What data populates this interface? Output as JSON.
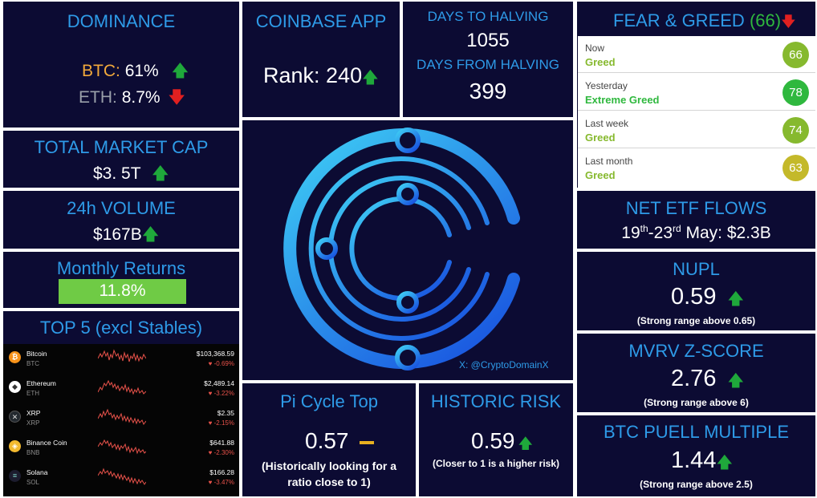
{
  "dominance": {
    "title": "DOMINANCE",
    "btc_label": "BTC:",
    "btc_value": "61%",
    "btc_arrow": "up-arrow",
    "eth_label": "ETH:",
    "eth_value": "8.7%",
    "eth_arrow": "down-arrow"
  },
  "coinbase": {
    "title": "COINBASE APP",
    "rank_label": "Rank: 240"
  },
  "halving": {
    "days_to_label": "DAYS TO HALVING",
    "days_to_value": "1055",
    "days_from_label": "DAYS FROM HALVING",
    "days_from_value": "399"
  },
  "fear_greed": {
    "title": "FEAR & GREED",
    "score": "(66)",
    "rows": [
      {
        "label": "Now",
        "sentiment": "Greed",
        "value": "66",
        "color": "#86b92e"
      },
      {
        "label": "Yesterday",
        "sentiment": "Extreme Greed",
        "value": "78",
        "color": "#2fb83e"
      },
      {
        "label": "Last week",
        "sentiment": "Greed",
        "value": "74",
        "color": "#86b92e"
      },
      {
        "label": "Last month",
        "sentiment": "Greed",
        "value": "63",
        "color": "#c4b92a"
      }
    ]
  },
  "market_cap": {
    "title": "TOTAL MARKET CAP",
    "value": "$3. 5T"
  },
  "volume": {
    "title": "24h VOLUME",
    "value": "$167B"
  },
  "monthly": {
    "title": "Monthly Returns",
    "value": "11.8%",
    "bar_color": "#6fcb45"
  },
  "top5": {
    "title": "TOP 5 (excl Stables)",
    "coins": [
      {
        "name": "Bitcoin",
        "symbol": "BTC",
        "price": "$103,368.59",
        "change": "-0.69%",
        "icon_color": "#f7931a",
        "icon_glyph": "₿"
      },
      {
        "name": "Ethereum",
        "symbol": "ETH",
        "price": "$2,489.14",
        "change": "-3.22%",
        "icon_color": "#ffffff",
        "icon_glyph": "◆"
      },
      {
        "name": "XRP",
        "symbol": "XRP",
        "price": "$2.35",
        "change": "-2.15%",
        "icon_color": "#23292f",
        "icon_glyph": "✕"
      },
      {
        "name": "Binance Coin",
        "symbol": "BNB",
        "price": "$641.88",
        "change": "-2.30%",
        "icon_color": "#f3ba2f",
        "icon_glyph": "◈"
      },
      {
        "name": "Solana",
        "symbol": "SOL",
        "price": "$166.28",
        "change": "-3.47%",
        "icon_color": "#1c1c2e",
        "icon_glyph": "≡"
      }
    ]
  },
  "logo": {
    "credit": "X: @CryptoDomainX"
  },
  "etf": {
    "title": "NET ETF FLOWS",
    "d1": "19",
    "s1": "th",
    "sep": "-23",
    "s2": "rd",
    "rest": " May: $2.3B"
  },
  "nupl": {
    "title": "NUPL",
    "value": "0.59",
    "note": "(Strong range above 0.65)"
  },
  "mvrv": {
    "title": "MVRV Z-SCORE",
    "value": "2.76",
    "note": "(Strong range above 6)"
  },
  "puell": {
    "title": "BTC PUELL MULTIPLE",
    "value": "1.44",
    "note": "(Strong range above 2.5)"
  },
  "pi": {
    "title": "Pi Cycle Top",
    "value": "0.57",
    "note1": "(Historically looking for a",
    "note2": "ratio close to 1)"
  },
  "risk": {
    "title": "HISTORIC RISK",
    "value": "0.59",
    "note": "(Closer to 1 is a higher risk)"
  },
  "colors": {
    "panel_bg": "#0c0b33",
    "accent_blue": "#2e9be8",
    "up": "#1fa83b",
    "down": "#e02020",
    "neutral": "#e8b020"
  }
}
